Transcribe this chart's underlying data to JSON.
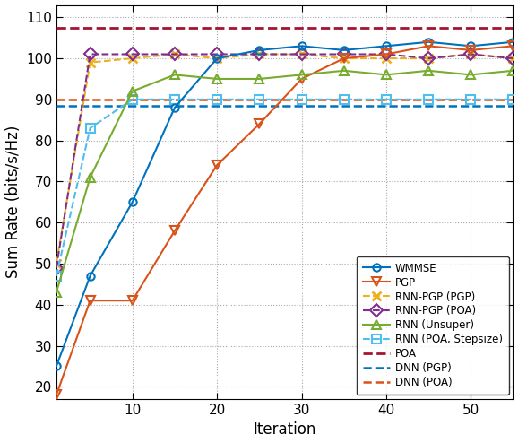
{
  "xlabel": "Iteration",
  "ylabel": "Sum Rate (bits/s/Hz)",
  "xlim": [
    1,
    55
  ],
  "ylim": [
    17,
    113
  ],
  "yticks": [
    20,
    30,
    40,
    50,
    60,
    70,
    80,
    90,
    100,
    110
  ],
  "xticks": [
    10,
    20,
    30,
    40,
    50
  ],
  "wmmse_x": [
    1,
    5,
    10,
    15,
    20,
    25,
    30,
    35,
    40,
    45,
    50,
    55
  ],
  "wmmse_y": [
    25,
    47,
    65,
    88,
    100,
    102,
    103,
    102,
    103,
    104,
    103,
    104
  ],
  "pgp_x": [
    1,
    5,
    10,
    15,
    20,
    25,
    30,
    35,
    40,
    45,
    50,
    55
  ],
  "pgp_y": [
    18,
    41,
    41,
    58,
    74,
    84,
    95,
    100,
    101,
    103,
    102,
    103
  ],
  "rnn_pgp_pgp_x": [
    1,
    5,
    10,
    15,
    20,
    25,
    30,
    35,
    40,
    45,
    50,
    55
  ],
  "rnn_pgp_pgp_y": [
    50,
    99,
    100,
    101,
    100,
    101,
    101,
    100,
    100,
    100,
    101,
    100
  ],
  "rnn_pgp_poa_x": [
    1,
    5,
    10,
    15,
    20,
    25,
    30,
    35,
    40,
    45,
    50,
    55
  ],
  "rnn_pgp_poa_y": [
    49,
    101,
    101,
    101,
    101,
    101,
    101,
    101,
    101,
    100,
    101,
    100
  ],
  "rnn_unsuper_x": [
    1,
    5,
    10,
    15,
    20,
    25,
    30,
    35,
    40,
    45,
    50,
    55
  ],
  "rnn_unsuper_y": [
    43,
    71,
    92,
    96,
    95,
    95,
    96,
    97,
    96,
    97,
    96,
    97
  ],
  "rnn_poa_step_x": [
    1,
    5,
    10,
    15,
    20,
    25,
    30,
    35,
    40,
    45,
    50,
    55
  ],
  "rnn_poa_step_y": [
    47,
    83,
    90,
    90,
    90,
    90,
    90,
    90,
    90,
    90,
    90,
    90
  ],
  "poa_level": 107.5,
  "dnn_pgp_level": 88.5,
  "dnn_poa_level": 90.0,
  "color_wmmse": "#0072BD",
  "color_pgp": "#D95319",
  "color_rnn_pgp_pgp": "#EDB120",
  "color_rnn_pgp_poa": "#7E2F8E",
  "color_rnn_unsuper": "#77AC30",
  "color_rnn_poa_step": "#4DBEEE",
  "color_poa": "#A2142F",
  "color_dnn_pgp": "#0072BD",
  "color_dnn_poa": "#D95319"
}
